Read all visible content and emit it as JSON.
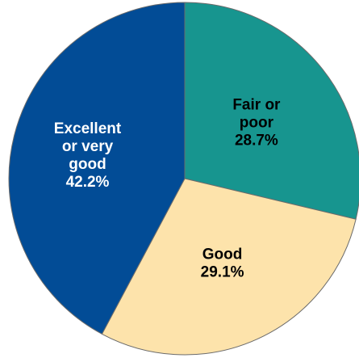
{
  "chart_data": {
    "type": "pie",
    "start_angle_deg": 0,
    "direction": "clockwise",
    "slices": [
      {
        "label_lines": [
          "Fair or",
          "poor",
          "28.7%"
        ],
        "category": "Fair or poor",
        "value": 28.7,
        "color": "#17958f",
        "text_color": "#000000"
      },
      {
        "label_lines": [
          "Good",
          "29.1%"
        ],
        "category": "Good",
        "value": 29.1,
        "color": "#fde3ab",
        "text_color": "#000000"
      },
      {
        "label_lines": [
          "Excellent",
          "or very",
          "good",
          "42.2%"
        ],
        "category": "Excellent or very good",
        "value": 42.2,
        "color": "#024c96",
        "text_color": "#ffffff"
      }
    ]
  }
}
